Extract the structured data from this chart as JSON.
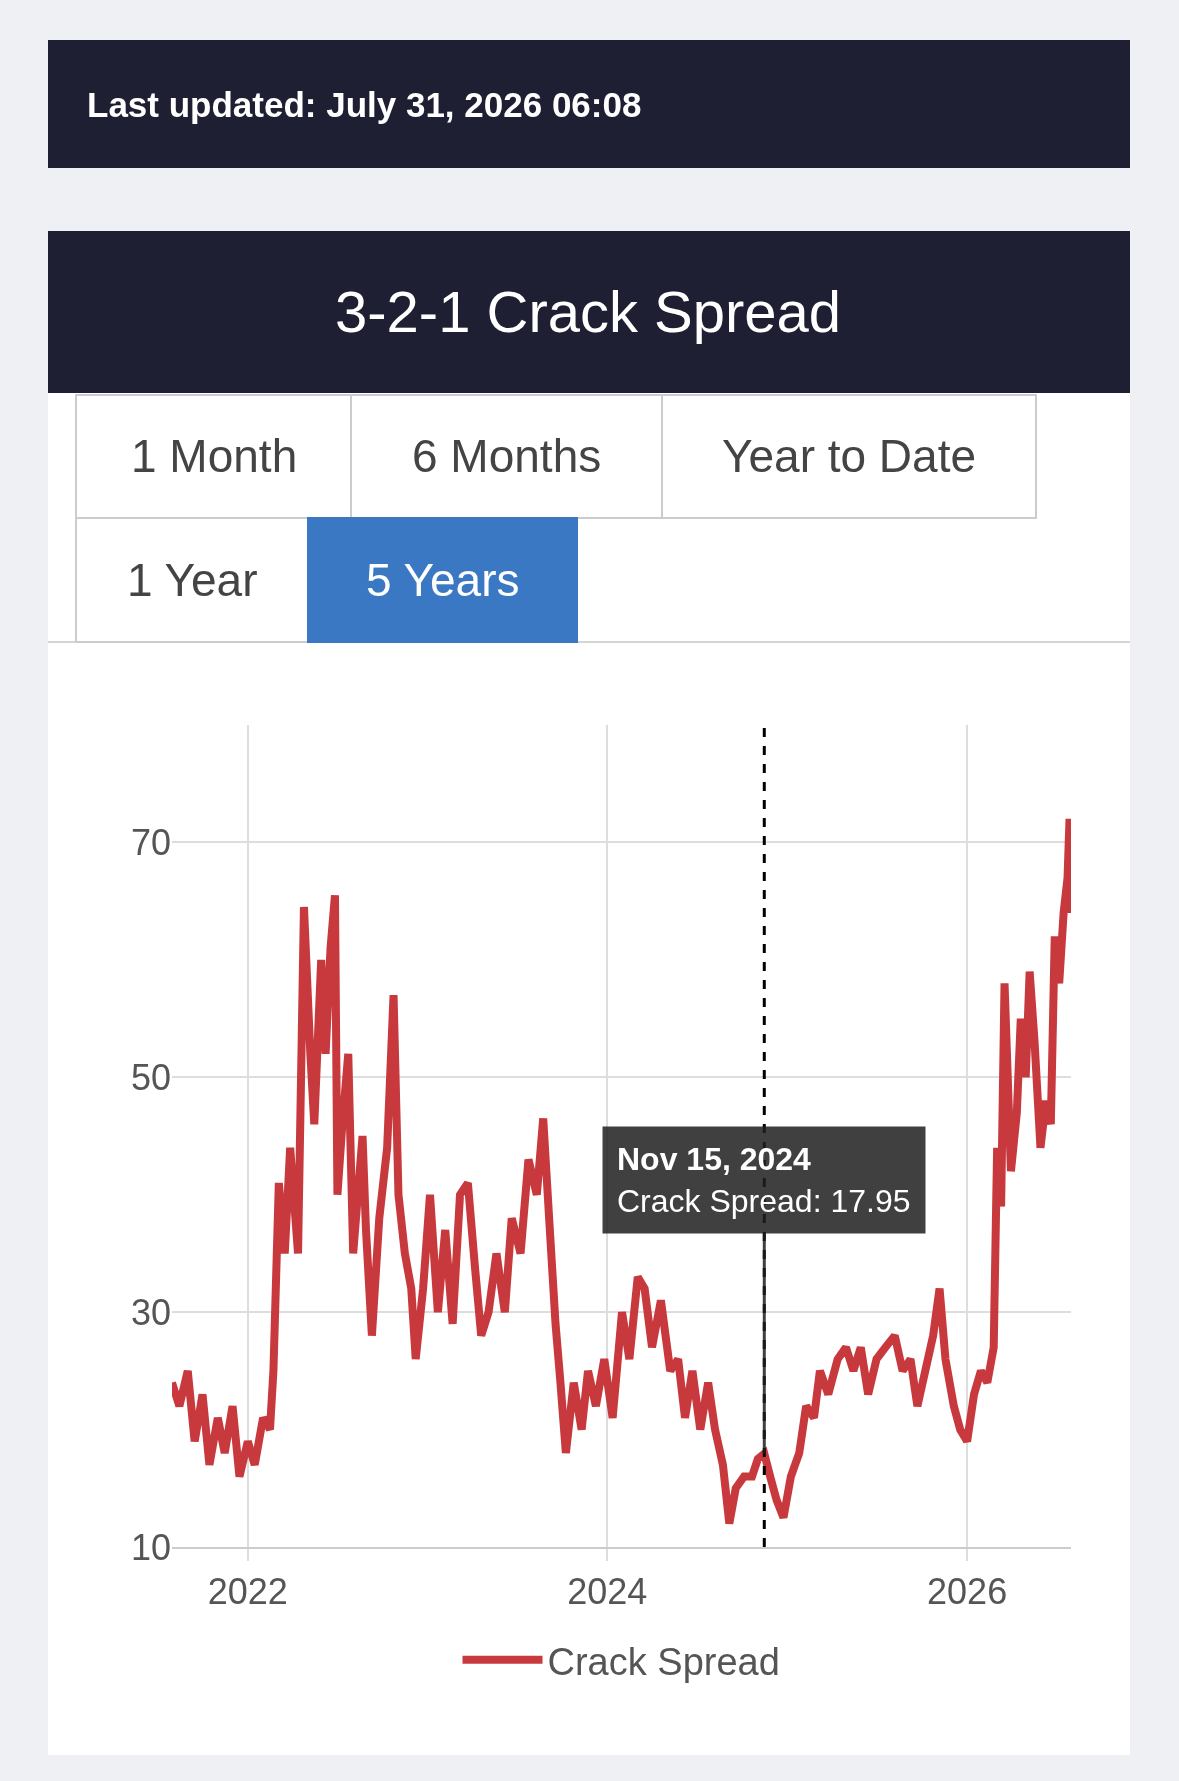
{
  "chart_data": {
    "type": "line",
    "title": "3-2-1 Crack Spread",
    "annotations": [
      "Last updated: July 31, 2026 06:08",
      "1 Month",
      "6 Months",
      "Year to Date",
      "1 Year",
      "5 Years",
      {
        "text": "Nov 15, 2024\nCrack Spread: 17.95",
        "x": "2024-11-15",
        "y": 17.95
      }
    ],
    "x": [
      "2021-07-31",
      "2021-08-15",
      "2021-09-01",
      "2021-09-15",
      "2021-10-01",
      "2021-10-15",
      "2021-11-01",
      "2021-11-15",
      "2021-12-01",
      "2021-12-15",
      "2022-01-01",
      "2022-01-15",
      "2022-02-01",
      "2022-02-15",
      "2022-02-22",
      "2022-03-05",
      "2022-03-17",
      "2022-03-28",
      "2022-04-13",
      "2022-04-25",
      "2022-05-08",
      "2022-05-16",
      "2022-05-30",
      "2022-06-08",
      "2022-06-18",
      "2022-06-27",
      "2022-07-02",
      "2022-07-12",
      "2022-07-24",
      "2022-08-03",
      "2022-08-22",
      "2022-08-29",
      "2022-09-10",
      "2022-09-25",
      "2022-10-11",
      "2022-10-24",
      "2022-11-03",
      "2022-11-16",
      "2022-11-29",
      "2022-12-08",
      "2022-12-23",
      "2023-01-06",
      "2023-01-22",
      "2023-02-06",
      "2023-02-21",
      "2023-03-08",
      "2023-03-24",
      "2023-04-07",
      "2023-04-20",
      "2023-05-05",
      "2023-05-21",
      "2023-06-07",
      "2023-06-21",
      "2023-07-09",
      "2023-07-25",
      "2023-08-11",
      "2023-08-24",
      "2023-09-05",
      "2023-09-18",
      "2023-09-28",
      "2023-10-09",
      "2023-10-25",
      "2023-11-10",
      "2023-11-23",
      "2023-12-09",
      "2023-12-26",
      "2024-01-12",
      "2024-01-31",
      "2024-02-15",
      "2024-03-03",
      "2024-03-17",
      "2024-04-01",
      "2024-04-19",
      "2024-05-08",
      "2024-05-24",
      "2024-06-07",
      "2024-06-22",
      "2024-07-08",
      "2024-07-24",
      "2024-08-07",
      "2024-08-23",
      "2024-09-05",
      "2024-09-18",
      "2024-10-05",
      "2024-10-21",
      "2024-11-02",
      "2024-11-15",
      "2024-11-27",
      "2024-12-10",
      "2024-12-24",
      "2025-01-08",
      "2025-01-25",
      "2025-02-08",
      "2025-02-24",
      "2025-03-08",
      "2025-03-25",
      "2025-04-13",
      "2025-04-30",
      "2025-05-15",
      "2025-05-30",
      "2025-06-14",
      "2025-07-01",
      "2025-07-19",
      "2025-08-07",
      "2025-08-23",
      "2025-09-08",
      "2025-09-22",
      "2025-10-08",
      "2025-10-24",
      "2025-11-06",
      "2025-11-18",
      "2025-12-05",
      "2025-12-18",
      "2026-01-01",
      "2026-01-15",
      "2026-01-29",
      "2026-02-11",
      "2026-02-24",
      "2026-03-03",
      "2026-03-11",
      "2026-03-18",
      "2026-03-31",
      "2026-04-12",
      "2026-04-20",
      "2026-04-30",
      "2026-05-08",
      "2026-05-18",
      "2026-05-30",
      "2026-06-10",
      "2026-06-20",
      "2026-06-28",
      "2026-07-07",
      "2026-07-16",
      "2026-07-24",
      "2026-07-28",
      "2026-07-31"
    ],
    "series": [
      {
        "name": "Crack Spread",
        "color": "#c8393d",
        "values": [
          24,
          22,
          25,
          19,
          23,
          17,
          21,
          18,
          22,
          16,
          19,
          17,
          21,
          20,
          25,
          41,
          35,
          44,
          35,
          64.5,
          52,
          46,
          60,
          52,
          61,
          65.5,
          40,
          46,
          52,
          35,
          45,
          37,
          28,
          38,
          44,
          57,
          40,
          35,
          32,
          26,
          32,
          40,
          30,
          37,
          29,
          40,
          41,
          34,
          28,
          30,
          35,
          30,
          38,
          35,
          43,
          40,
          46.5,
          38,
          29,
          24,
          18,
          24,
          20,
          25,
          22,
          26,
          21,
          30,
          26,
          33,
          32,
          27,
          31,
          25,
          26,
          21,
          25,
          20,
          24,
          20,
          17,
          12,
          15,
          16,
          16,
          17.5,
          17.95,
          16,
          14,
          12.5,
          16,
          18,
          22,
          21,
          25,
          23,
          26,
          27,
          25,
          27,
          23,
          26,
          27,
          28,
          25,
          26,
          22,
          25,
          28,
          32,
          26,
          22,
          20,
          19,
          23,
          25,
          24,
          27,
          44,
          39,
          58,
          42,
          47,
          55,
          50,
          59,
          53,
          44,
          48,
          46,
          62,
          58,
          64,
          67,
          72,
          64
        ]
      }
    ],
    "xlim": [
      "2021-07-31",
      "2026-07-31"
    ],
    "xticks": [
      {
        "value": "2022-01-01",
        "label": "2022"
      },
      {
        "value": "2024-01-01",
        "label": "2024"
      },
      {
        "value": "2026-01-01",
        "label": "2026"
      }
    ],
    "ylim": [
      10,
      80
    ],
    "yticks": [
      10,
      30,
      50,
      70
    ],
    "ref_lines": [
      {
        "axis": "x",
        "value": "2024-11-15",
        "color": "#000000",
        "line_style": "dashed"
      }
    ],
    "grid": true,
    "legend": "bottom",
    "marker": "none",
    "line_style": "solid"
  }
}
